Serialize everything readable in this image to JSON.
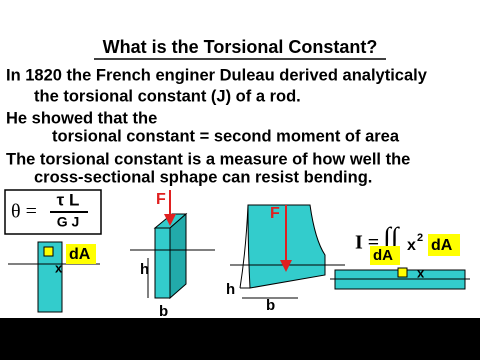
{
  "header": {
    "title": "What is the Torsional Constant?"
  },
  "lines": [
    "In 1820 the French enginer Duleau derived analyticaly",
    "the torsional constant (J) of a rod.",
    "He showed that the",
    "torsional constant = second moment of area",
    "The torsional constant is a measure of how well the",
    "cross-sectional sphape can resist bending."
  ],
  "formula": {
    "lhs": "θ =",
    "numerator": "τ L",
    "denominator": "G J"
  },
  "diagram1": {
    "area": "dA",
    "distance": "x"
  },
  "diagram2": {
    "force": "F",
    "height": "h",
    "width": "b"
  },
  "diagram3": {
    "force": "F",
    "height": "h",
    "width": "b"
  },
  "diagram4": {
    "lhs": "I =",
    "integral": "∫∫",
    "variable": "x",
    "power": "2",
    "area": "dA",
    "bar_area": "dA",
    "bar_distance": "x"
  }
}
